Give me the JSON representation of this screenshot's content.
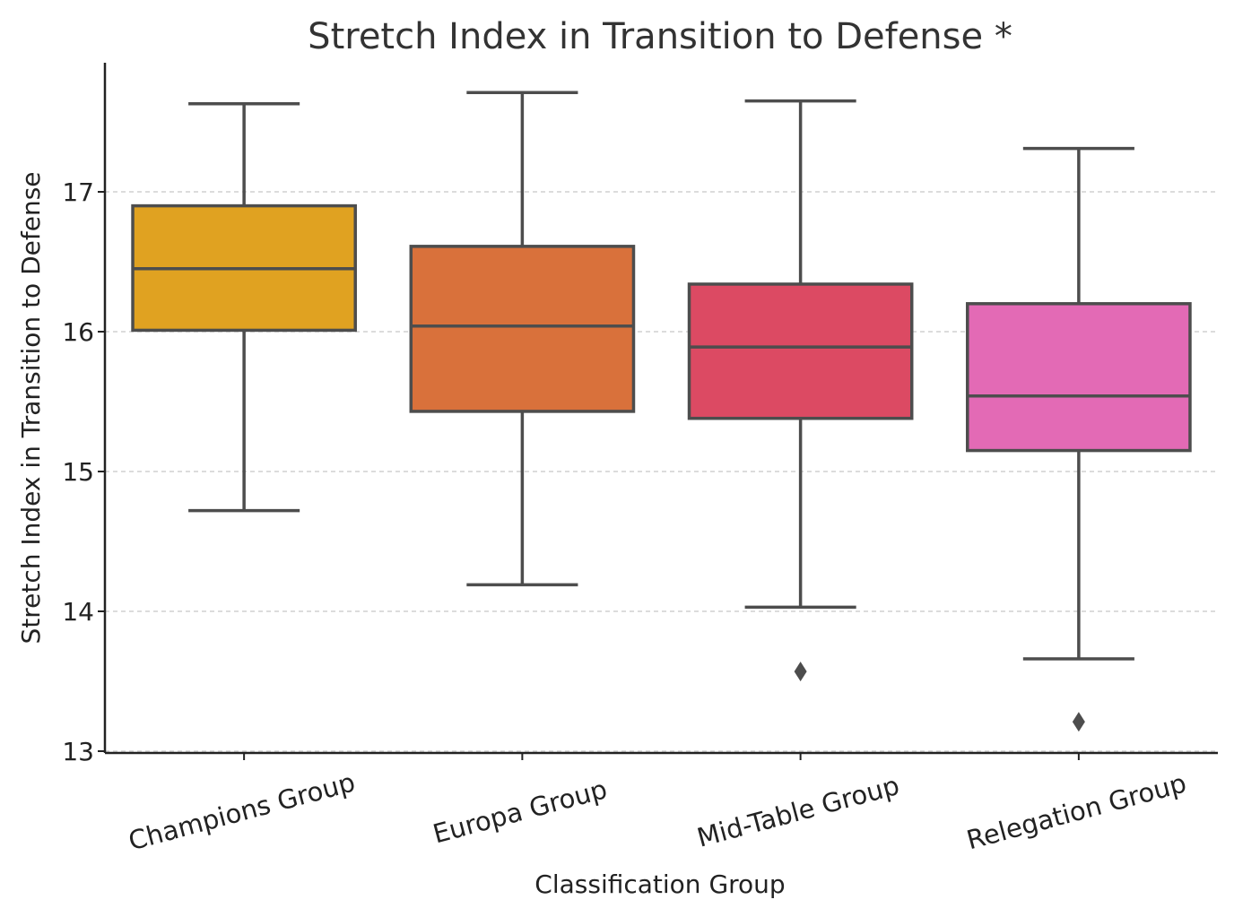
{
  "chart_data": {
    "type": "box",
    "title": "Stretch Index in Transition to Defense *",
    "xlabel": "Classification Group",
    "ylabel": "Stretch Index in Transition to Defense",
    "ylim": [
      13,
      17.9
    ],
    "yticks": [
      13,
      14,
      15,
      16,
      17
    ],
    "grid": "horizontal dashed",
    "categories": [
      "Champions Group",
      "Europa Group",
      "Mid-Table Group",
      "Relegation Group"
    ],
    "boxes": [
      {
        "category": "Champions Group",
        "whisker_low": 14.72,
        "q1": 16.01,
        "median": 16.45,
        "q3": 16.9,
        "whisker_high": 17.63,
        "outliers": [],
        "color": "#E0A221"
      },
      {
        "category": "Europa Group",
        "whisker_low": 14.19,
        "q1": 15.43,
        "median": 16.04,
        "q3": 16.61,
        "whisker_high": 17.71,
        "outliers": [],
        "color": "#D9713B"
      },
      {
        "category": "Mid-Table Group",
        "whisker_low": 14.03,
        "q1": 15.38,
        "median": 15.89,
        "q3": 16.34,
        "whisker_high": 17.65,
        "outliers": [
          13.57
        ],
        "color": "#DC4A63"
      },
      {
        "category": "Relegation Group",
        "whisker_low": 13.66,
        "q1": 15.15,
        "median": 15.54,
        "q3": 16.2,
        "whisker_high": 17.31,
        "outliers": [
          13.21
        ],
        "color": "#E36AB5"
      }
    ],
    "line_color": "#4d4d4d",
    "grid_color": "#c8c8c8"
  }
}
